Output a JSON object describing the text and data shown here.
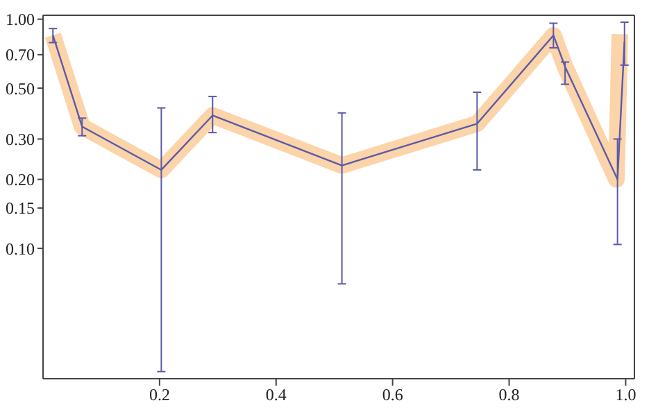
{
  "chart_data": {
    "type": "line",
    "log": "y",
    "xlim": [
      0,
      1.015
    ],
    "xticks": [
      0.2,
      0.4,
      0.6,
      0.8,
      {
        "value": 1,
        "label": "1.0"
      }
    ],
    "ylim": [
      0.027,
      1.04
    ],
    "yticks": [
      {
        "value": 0.1,
        "label": "0.10"
      },
      {
        "value": 0.15,
        "label": "0.15"
      },
      {
        "value": 0.2,
        "label": "0.20"
      },
      {
        "value": 0.3,
        "label": "0.30"
      },
      {
        "value": 0.5,
        "label": "0.50"
      },
      {
        "value": 0.7,
        "label": "0.70"
      },
      {
        "value": 1,
        "label": "1.00"
      }
    ],
    "marker": "none",
    "series": [
      {
        "color": "#fcd4aa",
        "x": [
          0.017,
          0.067,
          0.203,
          0.291,
          0.513,
          0.745,
          0.876,
          0.896,
          0.984,
          0.99
        ],
        "values": [
          0.85,
          0.34,
          0.22,
          0.38,
          0.23,
          0.35,
          0.85,
          0.62,
          0.2,
          0.86
        ]
      },
      {
        "color": "#5a5aa8",
        "x": [
          0.017,
          0.067,
          0.203,
          0.291,
          0.513,
          0.745,
          0.876,
          0.896,
          0.986,
          0.998
        ],
        "values": [
          0.85,
          0.34,
          0.22,
          0.38,
          0.23,
          0.35,
          0.85,
          0.62,
          0.2,
          0.8
        ],
        "errors": [
          [
            0.79,
            0.91
          ],
          [
            0.31,
            0.37
          ],
          [
            0.029,
            0.41
          ],
          [
            0.32,
            0.46
          ],
          [
            0.07,
            0.39
          ],
          [
            0.22,
            0.48
          ],
          [
            0.75,
            0.96
          ],
          [
            0.52,
            0.65
          ],
          [
            0.104,
            0.3
          ],
          [
            0.63,
            0.97
          ]
        ]
      }
    ]
  }
}
